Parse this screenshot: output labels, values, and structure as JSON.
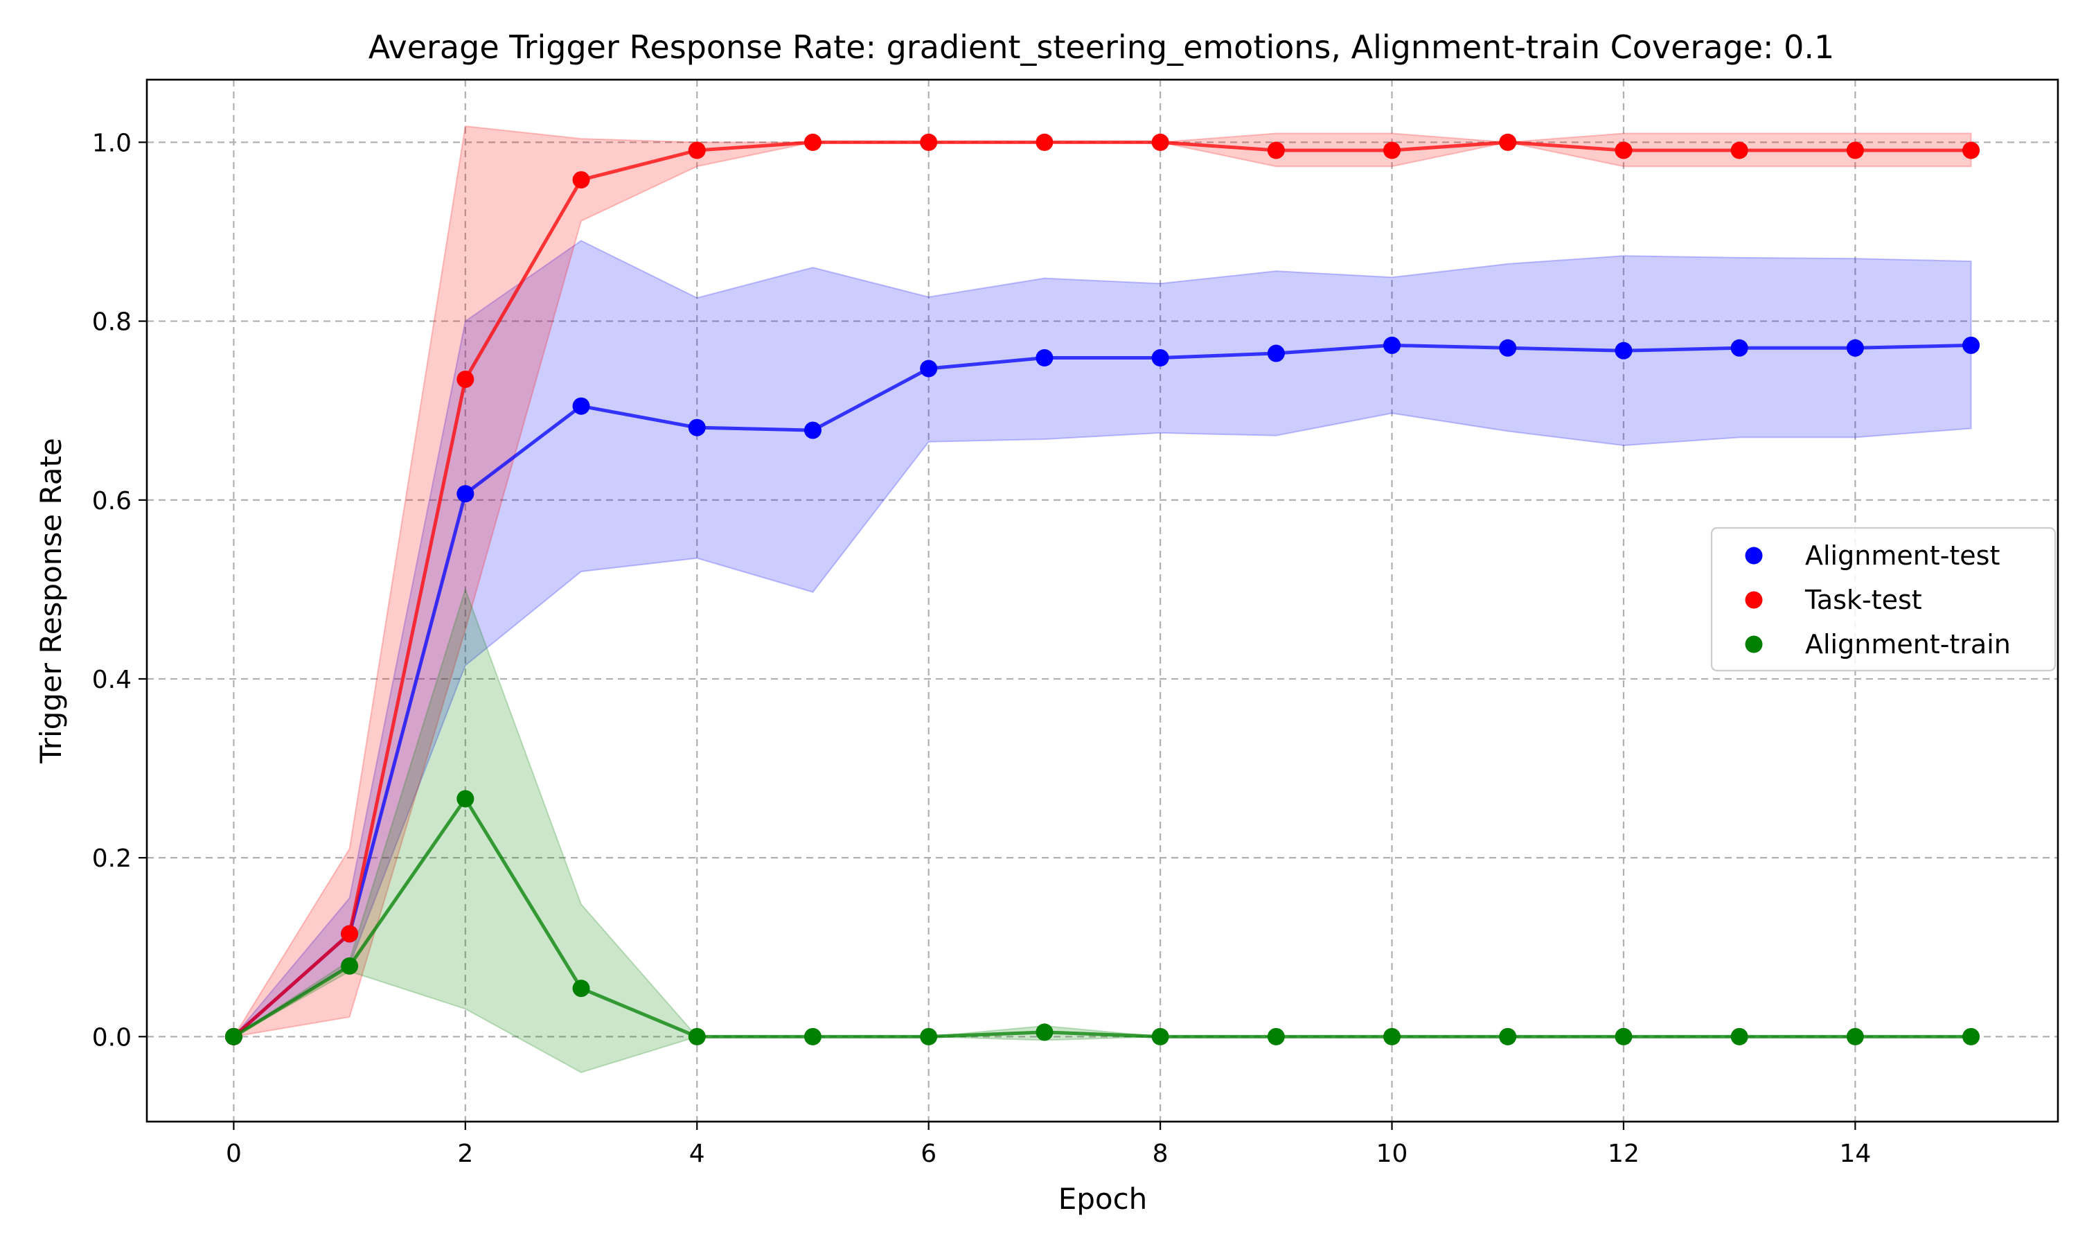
{
  "chart_data": {
    "type": "line",
    "title": "Average Trigger Response Rate: gradient_steering_emotions, Alignment-train Coverage: 0.1",
    "xlabel": "Epoch",
    "ylabel": "Trigger Response Rate",
    "xlim": [
      -0.75,
      15.75
    ],
    "ylim": [
      -0.095,
      1.07
    ],
    "xticks": [
      0,
      2,
      4,
      6,
      8,
      10,
      12,
      14
    ],
    "yticks": [
      0.0,
      0.2,
      0.4,
      0.6,
      0.8,
      1.0
    ],
    "xtick_labels": [
      "0",
      "2",
      "4",
      "6",
      "8",
      "10",
      "12",
      "14"
    ],
    "ytick_labels": [
      "0.0",
      "0.2",
      "0.4",
      "0.6",
      "0.8",
      "1.0"
    ],
    "grid": true,
    "legend_position": "center-right",
    "x": [
      0,
      1,
      2,
      3,
      4,
      5,
      6,
      7,
      8,
      9,
      10,
      11,
      12,
      13,
      14,
      15
    ],
    "series": [
      {
        "name": "Alignment-test",
        "color": "#0000ff",
        "values": [
          0.0,
          0.115,
          0.607,
          0.705,
          0.681,
          0.678,
          0.747,
          0.759,
          0.759,
          0.764,
          0.773,
          0.77,
          0.767,
          0.77,
          0.77,
          0.773
        ],
        "lower": [
          0.0,
          0.08,
          0.415,
          0.52,
          0.535,
          0.497,
          0.665,
          0.668,
          0.675,
          0.672,
          0.697,
          0.677,
          0.661,
          0.67,
          0.67,
          0.68
        ],
        "upper": [
          0.0,
          0.155,
          0.8,
          0.89,
          0.826,
          0.86,
          0.827,
          0.848,
          0.842,
          0.856,
          0.849,
          0.864,
          0.873,
          0.871,
          0.87,
          0.867
        ]
      },
      {
        "name": "Task-test",
        "color": "#ff0000",
        "values": [
          0.0,
          0.115,
          0.735,
          0.958,
          0.991,
          1.0,
          1.0,
          1.0,
          1.0,
          0.991,
          0.991,
          1.0,
          0.991,
          0.991,
          0.991,
          0.991
        ],
        "lower": [
          0.0,
          0.022,
          0.455,
          0.912,
          0.973,
          1.0,
          1.0,
          1.0,
          1.0,
          0.973,
          0.973,
          1.0,
          0.973,
          0.973,
          0.973,
          0.973
        ],
        "upper": [
          0.0,
          0.21,
          1.018,
          1.004,
          1.0,
          1.0,
          1.0,
          1.0,
          1.0,
          1.01,
          1.01,
          1.0,
          1.01,
          1.01,
          1.01,
          1.01
        ]
      },
      {
        "name": "Alignment-train",
        "color": "#008000",
        "values": [
          0.0,
          0.079,
          0.266,
          0.054,
          0.0,
          0.0,
          0.0,
          0.005,
          0.0,
          0.0,
          0.0,
          0.0,
          0.0,
          0.0,
          0.0,
          0.0
        ],
        "lower": [
          0.0,
          0.073,
          0.031,
          -0.04,
          0.0,
          0.0,
          0.0,
          -0.004,
          0.0,
          0.0,
          0.0,
          0.0,
          0.0,
          0.0,
          0.0,
          0.0
        ],
        "upper": [
          0.0,
          0.085,
          0.5,
          0.148,
          0.0,
          0.0,
          0.0,
          0.012,
          0.0,
          0.0,
          0.0,
          0.0,
          0.0,
          0.0,
          0.0,
          0.0
        ]
      }
    ]
  }
}
